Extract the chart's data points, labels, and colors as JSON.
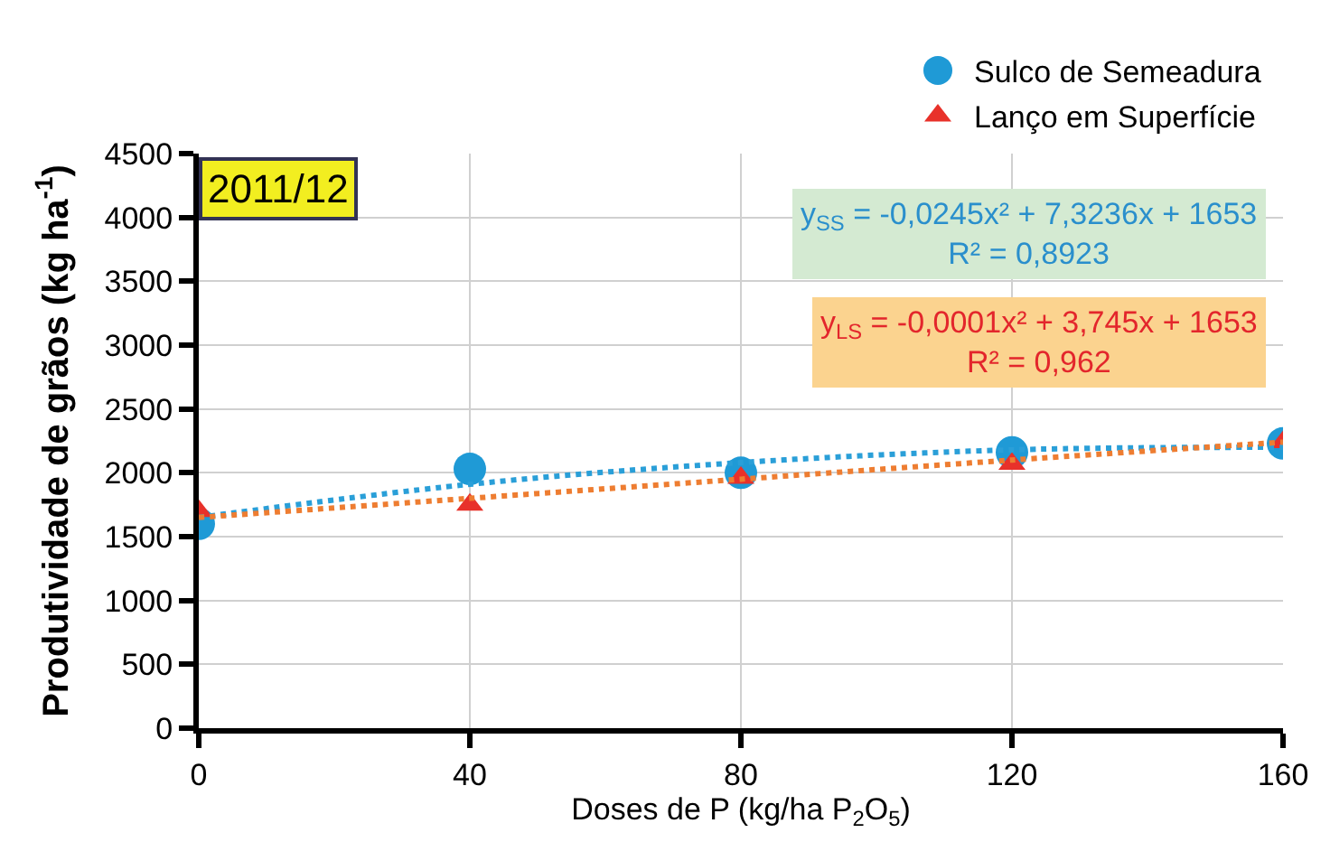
{
  "chart_data": {
    "type": "scatter",
    "title": "2011/12",
    "xlabel": "Doses de P (kg/ha P$_{2}$O$_{5}$)",
    "ylabel": "Produtividade de grãos (kg ha$^{-1}$)",
    "x": [
      0,
      40,
      80,
      120,
      160
    ],
    "xlim": [
      0,
      160
    ],
    "xticks": [
      0,
      40,
      80,
      120,
      160
    ],
    "ylim": [
      0,
      4500
    ],
    "yticks": [
      0,
      500,
      1000,
      1500,
      2000,
      2500,
      3000,
      3500,
      4000,
      4500
    ],
    "grid": true,
    "legend": "top right",
    "series": [
      {
        "name": "Sulco de Semeadura",
        "color": "#1f9ad6",
        "marker": "circle",
        "values": [
          1600,
          2030,
          2000,
          2160,
          2230
        ]
      },
      {
        "name": "Lanço em Superfície",
        "color": "#e8312a",
        "marker": "triangle",
        "values": [
          1700,
          1750,
          1960,
          2070,
          2240
        ]
      },
      {
        "type": "line",
        "color": "#2a9fd8",
        "line_style": "dotted",
        "marker": "none",
        "x": [
          0,
          40,
          80,
          120,
          160
        ],
        "values": [
          1650,
          1910,
          2080,
          2180,
          2200
        ]
      },
      {
        "type": "line",
        "color": "#ee7d31",
        "line_style": "dotted",
        "marker": "none",
        "x": [
          0,
          40,
          80,
          120,
          160
        ],
        "values": [
          1650,
          1800,
          1950,
          2100,
          2240
        ]
      }
    ],
    "annotations": [
      "y$_{SS}$ = -0,0245x² + 7,3236x + 1653\nR² = 0,8923",
      "y$_{LS}$ = -0,0001x² + 3,745x + 1653\nR² = 0,962"
    ]
  }
}
